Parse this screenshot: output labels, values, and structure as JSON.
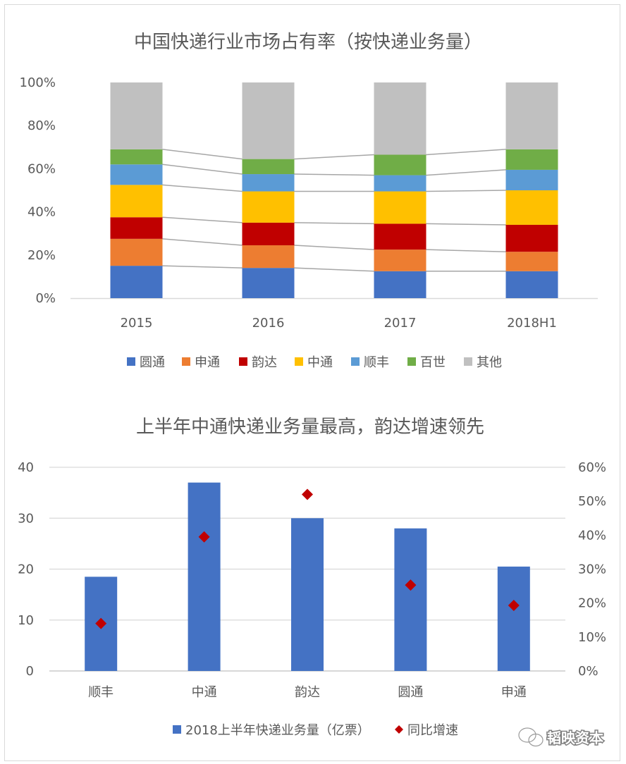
{
  "chart_data": [
    {
      "type": "bar",
      "stacked": true,
      "title": "中国快递行业市场占有率（按快递业务量）",
      "categories": [
        "2015",
        "2016",
        "2017",
        "2018H1"
      ],
      "ylim": [
        0,
        1
      ],
      "yticks": [
        "0%",
        "20%",
        "40%",
        "60%",
        "80%",
        "100%"
      ],
      "series": [
        {
          "name": "圆通",
          "color": "#4472C4",
          "values": [
            0.15,
            0.14,
            0.125,
            0.125
          ]
        },
        {
          "name": "申通",
          "color": "#ED7D31",
          "values": [
            0.125,
            0.105,
            0.1,
            0.09
          ]
        },
        {
          "name": "韵达",
          "color": "#C00000",
          "values": [
            0.1,
            0.105,
            0.12,
            0.125
          ]
        },
        {
          "name": "中通",
          "color": "#FFC000",
          "values": [
            0.15,
            0.145,
            0.15,
            0.16
          ]
        },
        {
          "name": "顺丰",
          "color": "#5B9BD5",
          "values": [
            0.095,
            0.08,
            0.075,
            0.095
          ]
        },
        {
          "name": "百世",
          "color": "#70AD47",
          "values": [
            0.07,
            0.07,
            0.095,
            0.095
          ]
        },
        {
          "name": "其他",
          "color": "#C0C0C0",
          "values": [
            0.31,
            0.355,
            0.335,
            0.31
          ]
        }
      ],
      "connector_color": "#A6A6A6",
      "legend": "bottom"
    },
    {
      "type": "bar",
      "title": "上半年中通快递业务量最高，韵达增速领先",
      "categories": [
        "顺丰",
        "中通",
        "韵达",
        "圆通",
        "申通"
      ],
      "ylim": [
        0,
        40
      ],
      "yticks": [
        "0",
        "10",
        "20",
        "30",
        "40"
      ],
      "y2lim": [
        0,
        0.6
      ],
      "y2ticks": [
        "0%",
        "10%",
        "20%",
        "30%",
        "40%",
        "50%",
        "60%"
      ],
      "series": [
        {
          "name": "2018上半年快递业务量（亿票）",
          "type": "bar",
          "color": "#4472C4",
          "values": [
            18.5,
            37,
            30,
            28,
            20.5
          ]
        },
        {
          "name": "同比增速",
          "type": "scatter",
          "axis": "right",
          "color": "#C00000",
          "values": [
            0.14,
            0.395,
            0.52,
            0.253,
            0.193
          ]
        }
      ],
      "grid": true,
      "legend": "bottom"
    }
  ],
  "watermark": {
    "text": "韬映资本",
    "icon": "wechat-icon"
  }
}
